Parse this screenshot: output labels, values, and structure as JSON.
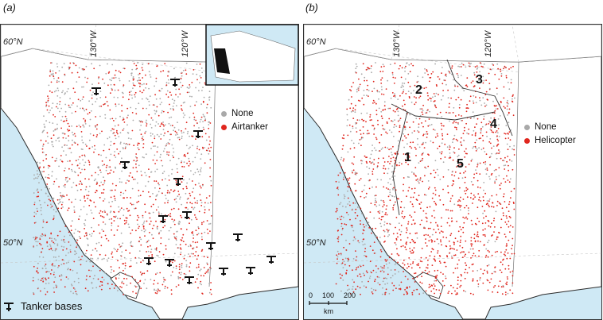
{
  "panels": {
    "a": {
      "letter": "(a)",
      "lat_label": "60°N",
      "lat_label2": "50°N",
      "lon_label1": "130°W",
      "lon_label2": "120°W",
      "legend": {
        "none": "None",
        "active": "Airtanker"
      },
      "bases_label": "Tanker bases"
    },
    "b": {
      "letter": "(b)",
      "lat_label": "60°N",
      "lat_label2": "50°N",
      "lon_label1": "130°W",
      "lon_label2": "120°W",
      "legend": {
        "none": "None",
        "active": "Helicopter"
      },
      "regions": [
        "1",
        "2",
        "3",
        "4",
        "5"
      ],
      "scale": {
        "ticks": [
          "0",
          "100",
          "200"
        ],
        "unit": "km"
      }
    }
  },
  "colors": {
    "ocean": "#cfe9f5",
    "land": "#ffffff",
    "none_point": "#a9a9a9",
    "active_point": "#e0261e",
    "coast": "#2b2b2b"
  }
}
